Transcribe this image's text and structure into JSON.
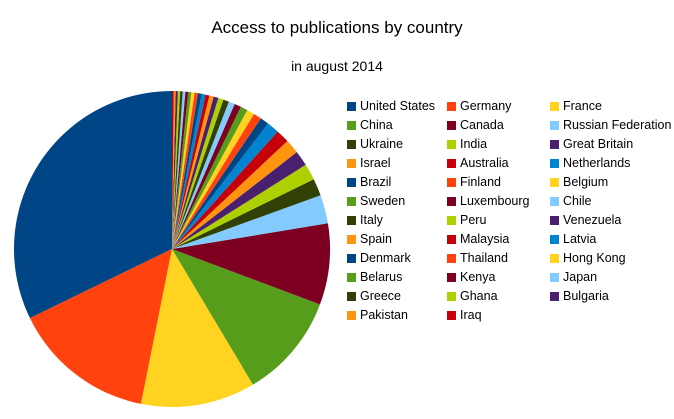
{
  "chart_data": {
    "type": "pie",
    "title": "Access to publications by country",
    "subtitle": "in august 2014",
    "legend_position": "right",
    "slices": [
      {
        "label": "United States",
        "value": 33.0,
        "color": "#004586"
      },
      {
        "label": "Germany",
        "value": 15.0,
        "color": "#ff420e"
      },
      {
        "label": "France",
        "value": 12.0,
        "color": "#ffd320"
      },
      {
        "label": "China",
        "value": 11.0,
        "color": "#579d1c"
      },
      {
        "label": "Canada",
        "value": 8.5,
        "color": "#7e0021"
      },
      {
        "label": "Russian Federation",
        "value": 3.0,
        "color": "#83caff"
      },
      {
        "label": "Ukraine",
        "value": 1.8,
        "color": "#314004"
      },
      {
        "label": "India",
        "value": 1.7,
        "color": "#aecf00"
      },
      {
        "label": "Great Britain",
        "value": 1.6,
        "color": "#4b1f6f"
      },
      {
        "label": "Israel",
        "value": 1.5,
        "color": "#ff950e"
      },
      {
        "label": "Australia",
        "value": 1.4,
        "color": "#c5000b"
      },
      {
        "label": "Netherlands",
        "value": 1.3,
        "color": "#0084d1"
      },
      {
        "label": "Brazil",
        "value": 0.9,
        "color": "#004586"
      },
      {
        "label": "Finland",
        "value": 0.85,
        "color": "#ff420e"
      },
      {
        "label": "Belgium",
        "value": 0.8,
        "color": "#ffd320"
      },
      {
        "label": "Sweden",
        "value": 0.75,
        "color": "#579d1c"
      },
      {
        "label": "Luxembourg",
        "value": 0.7,
        "color": "#7e0021"
      },
      {
        "label": "Chile",
        "value": 0.65,
        "color": "#83caff"
      },
      {
        "label": "Italy",
        "value": 0.6,
        "color": "#314004"
      },
      {
        "label": "Peru",
        "value": 0.55,
        "color": "#aecf00"
      },
      {
        "label": "Venezuela",
        "value": 0.5,
        "color": "#4b1f6f"
      },
      {
        "label": "Spain",
        "value": 0.45,
        "color": "#ff950e"
      },
      {
        "label": "Malaysia",
        "value": 0.42,
        "color": "#c5000b"
      },
      {
        "label": "Latvia",
        "value": 0.4,
        "color": "#0084d1"
      },
      {
        "label": "Denmark",
        "value": 0.38,
        "color": "#004586"
      },
      {
        "label": "Thailand",
        "value": 0.36,
        "color": "#ff420e"
      },
      {
        "label": "Hong Kong",
        "value": 0.34,
        "color": "#ffd320"
      },
      {
        "label": "Belarus",
        "value": 0.32,
        "color": "#579d1c"
      },
      {
        "label": "Kenya",
        "value": 0.3,
        "color": "#7e0021"
      },
      {
        "label": "Japan",
        "value": 0.28,
        "color": "#83caff"
      },
      {
        "label": "Greece",
        "value": 0.26,
        "color": "#314004"
      },
      {
        "label": "Ghana",
        "value": 0.24,
        "color": "#aecf00"
      },
      {
        "label": "Bulgaria",
        "value": 0.22,
        "color": "#4b1f6f"
      },
      {
        "label": "Pakistan",
        "value": 0.2,
        "color": "#ff950e"
      },
      {
        "label": "Iraq",
        "value": 0.18,
        "color": "#c5000b"
      }
    ]
  }
}
